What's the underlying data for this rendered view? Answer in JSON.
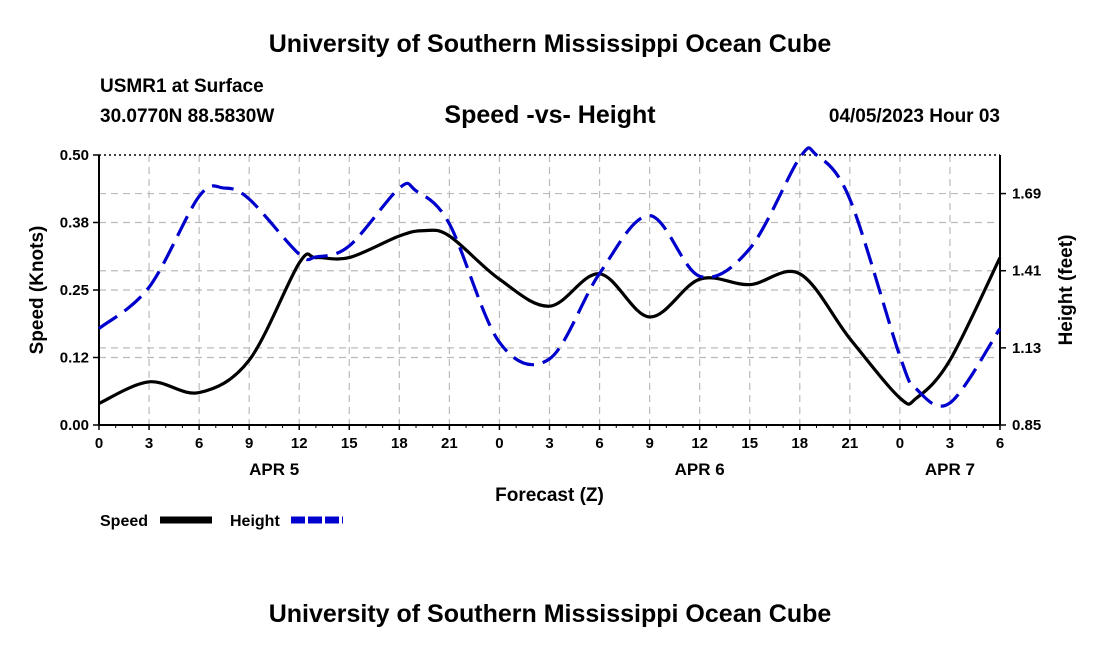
{
  "header": {
    "title": "University of Southern Mississippi Ocean Cube",
    "station": "USMR1 at Surface",
    "coords": "30.0770N  88.5830W",
    "subtitle": "Speed -vs- Height",
    "datetime": "04/05/2023 Hour 03"
  },
  "footer": {
    "title": "University of Southern Mississippi Ocean Cube"
  },
  "chart_data": {
    "type": "line",
    "xlabel": "Forecast (Z)",
    "ylabel_left": "Speed (Knots)",
    "ylabel_right": "Height (feet)",
    "x_hours_range": [
      0,
      54
    ],
    "x_tick_hours": [
      0,
      3,
      6,
      9,
      12,
      15,
      18,
      21,
      24,
      27,
      30,
      33,
      36,
      39,
      42,
      45,
      48,
      51,
      54
    ],
    "x_tick_labels": [
      "0",
      "3",
      "6",
      "9",
      "12",
      "15",
      "18",
      "21",
      "0",
      "3",
      "6",
      "9",
      "12",
      "15",
      "18",
      "21",
      "0",
      "3",
      "6"
    ],
    "date_labels": [
      {
        "hour": 10.5,
        "label": "APR 5"
      },
      {
        "hour": 36,
        "label": "APR 6"
      },
      {
        "hour": 51,
        "label": "APR 7"
      }
    ],
    "y_left_range": [
      0,
      0.5
    ],
    "y_left_ticks": [
      0,
      0.125,
      0.25,
      0.375,
      0.5
    ],
    "y_left_tick_labels": [
      "0.00",
      "0.12",
      "0.25",
      "0.38",
      "0.50"
    ],
    "y_right_range": [
      0.85,
      1.83
    ],
    "y_right_ticks": [
      0.85,
      1.13,
      1.41,
      1.69
    ],
    "y_right_tick_labels": [
      "0.85",
      "1.13",
      "1.41",
      "1.69"
    ],
    "grid": true,
    "series": [
      {
        "name": "Speed",
        "axis": "left",
        "color": "#000000",
        "style": "solid",
        "x": [
          0,
          3,
          6,
          9,
          12,
          13,
          15,
          18,
          19.5,
          21,
          24,
          27,
          30,
          33,
          36,
          39,
          42,
          45,
          48,
          49,
          51,
          54
        ],
        "values": [
          0.04,
          0.08,
          0.06,
          0.12,
          0.3,
          0.31,
          0.31,
          0.35,
          0.36,
          0.35,
          0.27,
          0.22,
          0.28,
          0.2,
          0.27,
          0.26,
          0.28,
          0.16,
          0.05,
          0.05,
          0.12,
          0.31
        ]
      },
      {
        "name": "Height",
        "axis": "right",
        "color": "#0000cc",
        "style": "dashed",
        "x": [
          0,
          3,
          6,
          7.5,
          9,
          12,
          13,
          15,
          18,
          19,
          21,
          24,
          27,
          30,
          33,
          36,
          39,
          42,
          43,
          45,
          48,
          49,
          51,
          54
        ],
        "values": [
          1.2,
          1.35,
          1.68,
          1.71,
          1.67,
          1.47,
          1.46,
          1.5,
          1.71,
          1.7,
          1.58,
          1.15,
          1.09,
          1.4,
          1.61,
          1.39,
          1.49,
          1.82,
          1.83,
          1.67,
          1.1,
          0.98,
          0.93,
          1.2
        ]
      }
    ],
    "legend": [
      {
        "label": "Speed"
      },
      {
        "label": "Height"
      }
    ]
  }
}
